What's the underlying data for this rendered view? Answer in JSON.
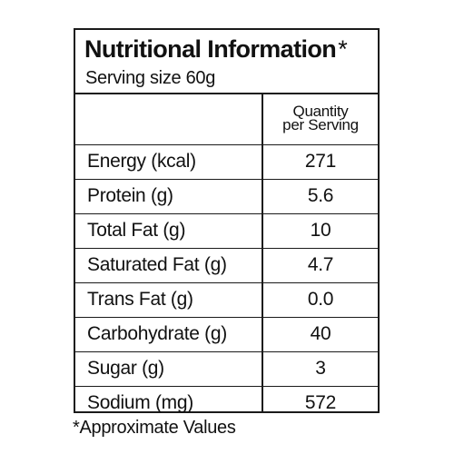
{
  "title": "Nutritional Information",
  "title_marker": "*",
  "serving_size": "Serving size 60g",
  "column_header": [
    "Quantity",
    "per Serving"
  ],
  "rows": [
    {
      "label": "Energy (kcal)",
      "value": "271"
    },
    {
      "label": "Protein (g)",
      "value": "5.6"
    },
    {
      "label": "Total Fat (g)",
      "value": "10"
    },
    {
      "label": "Saturated Fat (g)",
      "value": "4.7"
    },
    {
      "label": "Trans Fat (g)",
      "value": "0.0"
    },
    {
      "label": "Carbohydrate (g)",
      "value": "40"
    },
    {
      "label": "Sugar (g)",
      "value": "3"
    },
    {
      "label": "Sodium (mg)",
      "value": "572"
    }
  ],
  "footnote": "*Approximate Values",
  "colors": {
    "text": "#111111",
    "border": "#1a1a1a",
    "background": "#ffffff"
  }
}
